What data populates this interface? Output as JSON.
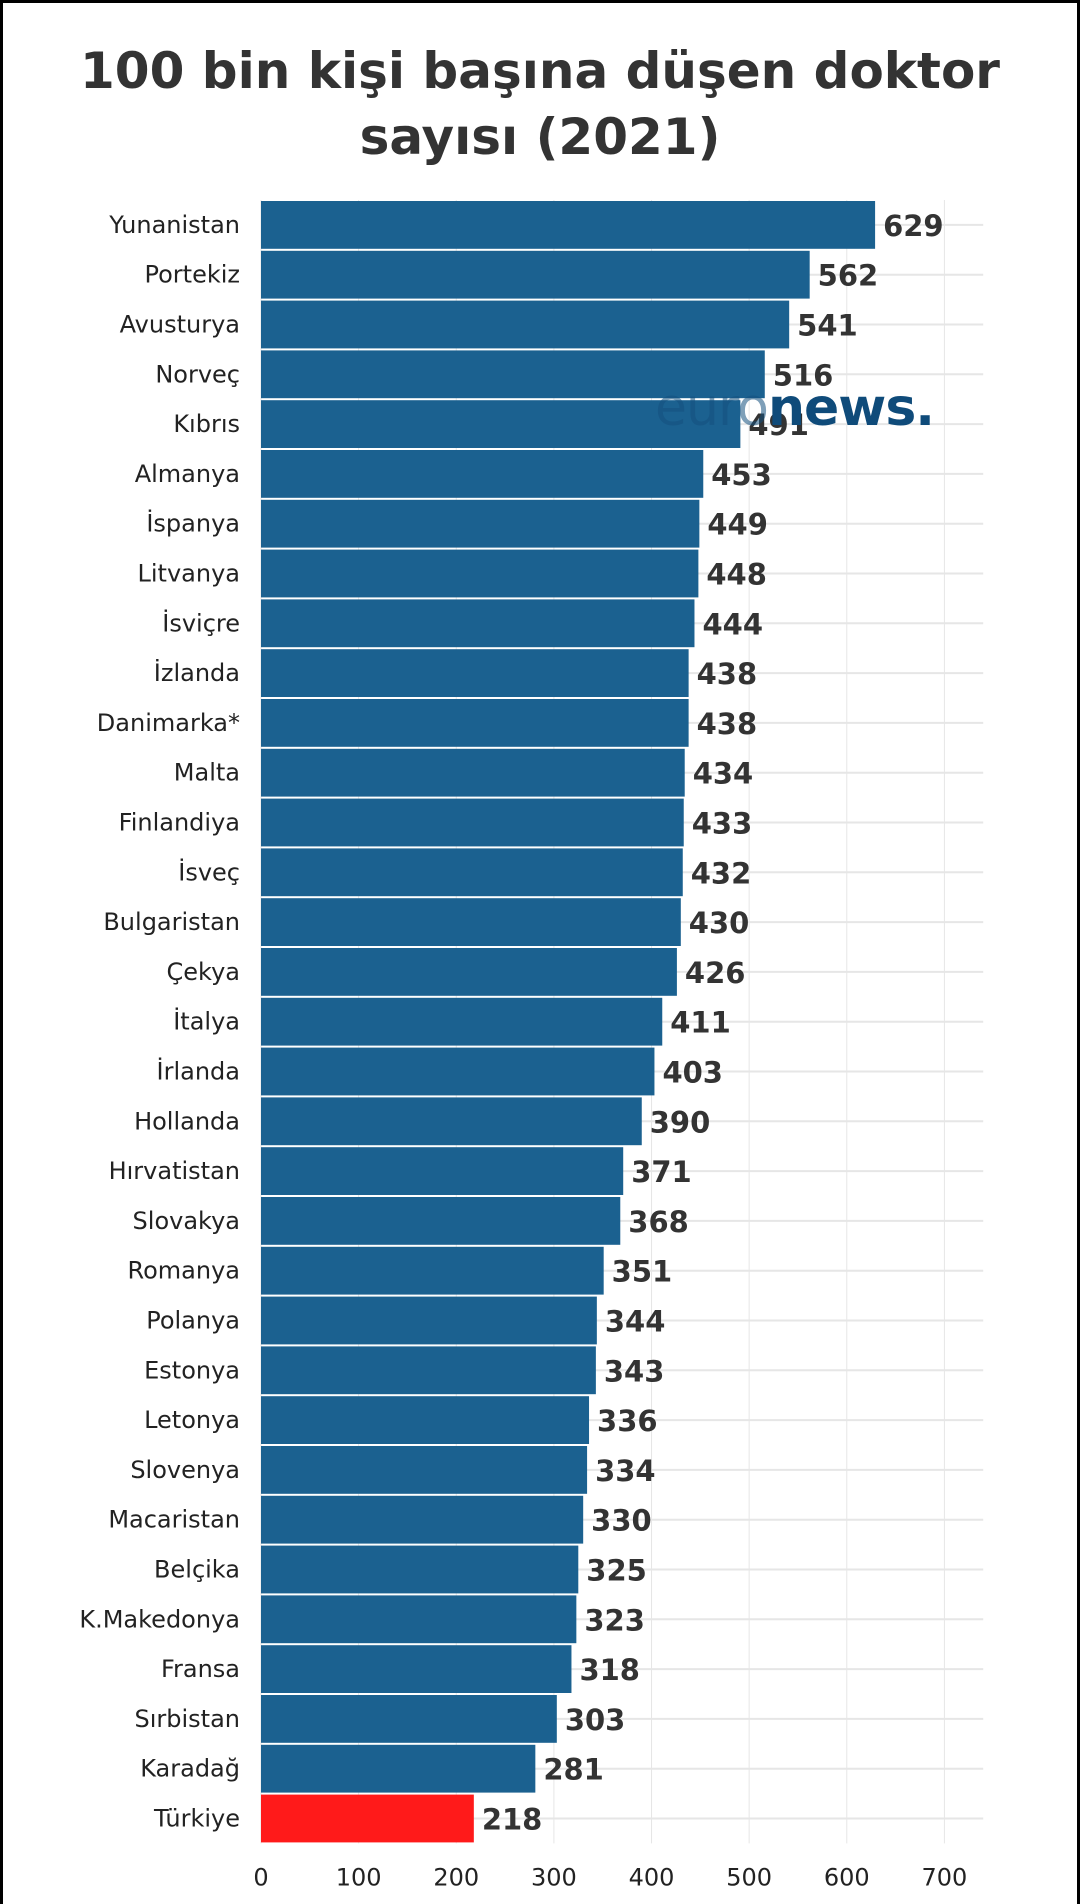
{
  "page": {
    "title": "100 bin kişi başına düşen doktor\nsayısı (2021)",
    "watermark": {
      "light": "euro",
      "dark": "news."
    }
  },
  "colors": {
    "bar": "#1b6190",
    "highlight": "#ff1a1a",
    "grid": "#e6e6e6",
    "bar_separator": "#ffffff"
  },
  "chart_data": {
    "type": "bar",
    "orientation": "horizontal",
    "title": "100 bin kişi başına düşen doktor sayısı (2021)",
    "xlabel": "",
    "ylabel": "",
    "categories": [
      "Yunanistan",
      "Portekiz",
      "Avusturya",
      "Norveç",
      "Kıbrıs",
      "Almanya",
      "İspanya",
      "Litvanya",
      "İsviçre",
      "İzlanda",
      "Danimarka*",
      "Malta",
      "Finlandiya",
      "İsveç",
      "Bulgaristan",
      "Çekya",
      "İtalya",
      "İrlanda",
      "Hollanda",
      "Hırvatistan",
      "Slovakya",
      "Romanya",
      "Polanya",
      "Estonya",
      "Letonya",
      "Slovenya",
      "Macaristan",
      "Belçika",
      "K.Makedonya",
      "Fransa",
      "Sırbistan",
      "Karadağ",
      "Türkiye"
    ],
    "values": [
      629,
      562,
      541,
      516,
      491,
      453,
      449,
      448,
      444,
      438,
      438,
      434,
      433,
      432,
      430,
      426,
      411,
      403,
      390,
      371,
      368,
      351,
      344,
      343,
      336,
      334,
      330,
      325,
      323,
      318,
      303,
      281,
      218
    ],
    "highlight": "Türkiye",
    "xlim": [
      0,
      750
    ],
    "xticks": [
      0,
      100,
      200,
      300,
      400,
      500,
      600,
      700
    ],
    "grid": true,
    "legend": "none"
  }
}
